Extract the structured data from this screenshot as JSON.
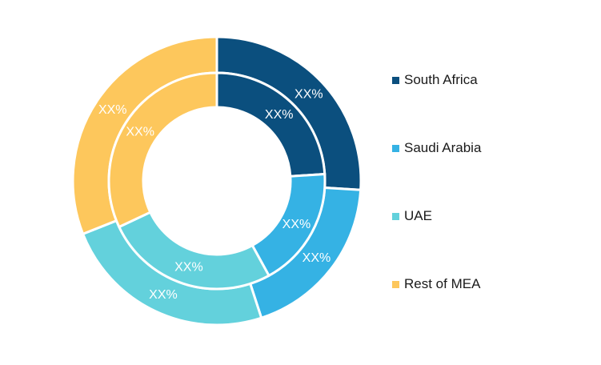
{
  "chart_data": {
    "type": "pie",
    "subtype": "double-donut",
    "categories": [
      "South Africa",
      "Saudi Arabia",
      "UAE",
      "Rest of MEA"
    ],
    "colors": [
      "#0b4f7e",
      "#35b2e4",
      "#63d1dc",
      "#fdc75c"
    ],
    "series": [
      {
        "ring": "outer",
        "values": [
          26,
          19,
          24,
          31
        ],
        "labels": [
          "XX%",
          "XX%",
          "XX%",
          "XX%"
        ]
      },
      {
        "ring": "inner",
        "values": [
          24,
          18,
          26,
          32
        ],
        "labels": [
          "XX%",
          "XX%",
          "XX%",
          "XX%"
        ]
      }
    ],
    "legend_position": "right"
  }
}
